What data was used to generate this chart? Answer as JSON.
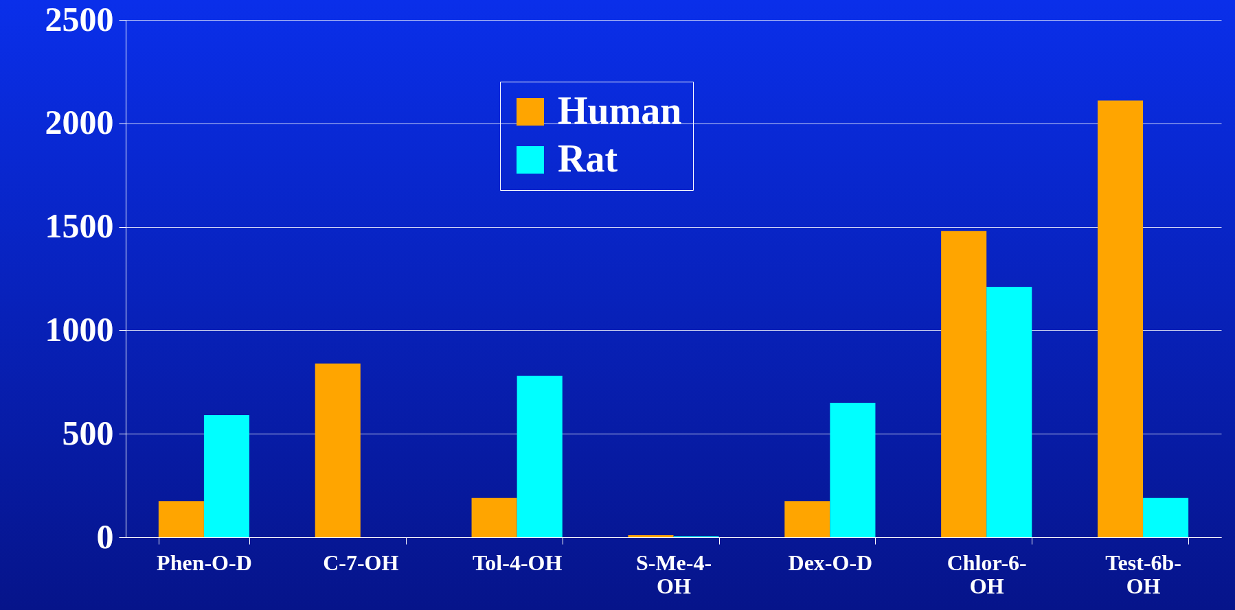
{
  "chart_data": {
    "type": "bar",
    "categories": [
      "Phen-O-D",
      "C-7-OH",
      "Tol-4-OH",
      "S-Me-4-OH",
      "Dex-O-D",
      "Chlor-6-OH",
      "Test-6b-OH"
    ],
    "series": [
      {
        "name": "Human",
        "color": "#ffa500",
        "values": [
          175,
          840,
          190,
          10,
          175,
          1480,
          2110
        ]
      },
      {
        "name": "Rat",
        "color": "#00ffff",
        "values": [
          590,
          0,
          780,
          5,
          650,
          1210,
          190
        ]
      }
    ],
    "ylim": [
      0,
      2500
    ],
    "yticks": [
      0,
      500,
      1000,
      1500,
      2000,
      2500
    ],
    "grid": "y",
    "legend": "top left"
  }
}
